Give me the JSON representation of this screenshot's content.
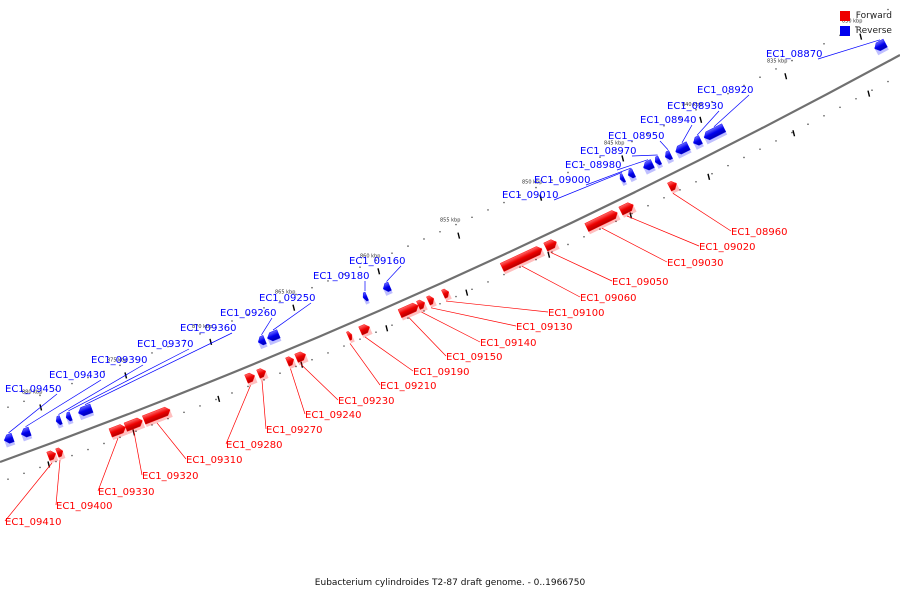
{
  "legend": [
    {
      "label": "Forward",
      "color": "#ff0000"
    },
    {
      "label": "Reverse",
      "color": "#0000ff"
    }
  ],
  "caption": "Eubacterium cylindroides T2-87 draft genome. - 0..1966750",
  "ticks": [
    "830 kbp",
    "835 kbp",
    "840 kbp",
    "845 kbp",
    "850 kbp",
    "855 kbp",
    "860 kbp",
    "865 kbp",
    "870 kbp",
    "875 kbp",
    "880 kbp"
  ],
  "reverse_genes": [
    "EC1_08870",
    "EC1_08920",
    "EC1_08930",
    "EC1_08940",
    "EC1_08950",
    "EC1_08970",
    "EC1_08980",
    "EC1_09000",
    "EC1_09010",
    "EC1_09160",
    "EC1_09180",
    "EC1_09250",
    "EC1_09260",
    "EC1_09360",
    "EC1_09370",
    "EC1_09390",
    "EC1_09430",
    "EC1_09450"
  ],
  "forward_genes": [
    "EC1_08960",
    "EC1_09020",
    "EC1_09030",
    "EC1_09050",
    "EC1_09060",
    "EC1_09100",
    "EC1_09130",
    "EC1_09140",
    "EC1_09150",
    "EC1_09190",
    "EC1_09210",
    "EC1_09230",
    "EC1_09240",
    "EC1_09270",
    "EC1_09280",
    "EC1_09310",
    "EC1_09320",
    "EC1_09330",
    "EC1_09400",
    "EC1_09410"
  ],
  "colors": {
    "forward": "#ff0000",
    "reverse": "#0000ff",
    "backbone": "#707070"
  }
}
